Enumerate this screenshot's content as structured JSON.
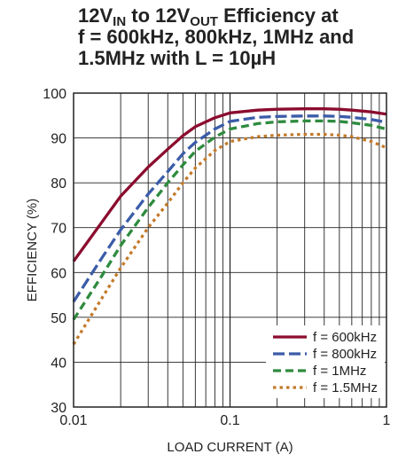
{
  "title": {
    "line1": {
      "p1": "12V",
      "s1": "IN",
      "p2": " to 12V",
      "s2": "OUT",
      "p3": " Efficiency at"
    },
    "line2": "f = 600kHz, 800kHz, 1MHz and",
    "line3": "1.5MHz with L = 10µH"
  },
  "chart_data": {
    "type": "line",
    "title": "12VIN to 12VOUT Efficiency at f = 600kHz, 800kHz, 1MHz and 1.5MHz with L = 10µH",
    "xlabel": "LOAD CURRENT (A)",
    "ylabel": "EFFICIENCY (%)",
    "xscale": "log",
    "xlim": [
      0.01,
      1
    ],
    "ylim": [
      30,
      100
    ],
    "grid": true,
    "legend_position": "bottom-right",
    "x_ticks": [
      {
        "v": 0.01,
        "label": "0.01"
      },
      {
        "v": 0.1,
        "label": "0.1"
      },
      {
        "v": 1,
        "label": "1"
      }
    ],
    "y_ticks": [
      30,
      40,
      50,
      60,
      70,
      80,
      90,
      100
    ],
    "series": [
      {
        "name": "f = 600kHz",
        "color": "#8b0c2e",
        "dash": "solid",
        "points": [
          [
            0.01,
            62.5
          ],
          [
            0.015,
            71
          ],
          [
            0.02,
            77
          ],
          [
            0.03,
            83.5
          ],
          [
            0.04,
            87.5
          ],
          [
            0.05,
            90.5
          ],
          [
            0.06,
            92.5
          ],
          [
            0.08,
            94.5
          ],
          [
            0.1,
            95.6
          ],
          [
            0.15,
            96.2
          ],
          [
            0.2,
            96.4
          ],
          [
            0.3,
            96.5
          ],
          [
            0.4,
            96.5
          ],
          [
            0.5,
            96.4
          ],
          [
            0.6,
            96.2
          ],
          [
            0.8,
            95.8
          ],
          [
            1.0,
            95.3
          ]
        ]
      },
      {
        "name": "f = 800kHz",
        "color": "#3b5ca8",
        "dash": "long",
        "points": [
          [
            0.01,
            53.5
          ],
          [
            0.015,
            63
          ],
          [
            0.02,
            69.5
          ],
          [
            0.03,
            77.5
          ],
          [
            0.04,
            82.5
          ],
          [
            0.05,
            86.5
          ],
          [
            0.06,
            89
          ],
          [
            0.08,
            92
          ],
          [
            0.1,
            93.7
          ],
          [
            0.15,
            94.6
          ],
          [
            0.2,
            94.8
          ],
          [
            0.3,
            94.9
          ],
          [
            0.4,
            94.9
          ],
          [
            0.5,
            94.8
          ],
          [
            0.6,
            94.6
          ],
          [
            0.8,
            94.1
          ],
          [
            1.0,
            93.5
          ]
        ]
      },
      {
        "name": "f = 1MHz",
        "color": "#2e8b3e",
        "dash": "medium",
        "points": [
          [
            0.01,
            49.5
          ],
          [
            0.015,
            59
          ],
          [
            0.02,
            66
          ],
          [
            0.03,
            74.5
          ],
          [
            0.04,
            80
          ],
          [
            0.05,
            84
          ],
          [
            0.06,
            87
          ],
          [
            0.08,
            90.2
          ],
          [
            0.1,
            92
          ],
          [
            0.15,
            93.2
          ],
          [
            0.2,
            93.6
          ],
          [
            0.3,
            93.8
          ],
          [
            0.4,
            93.8
          ],
          [
            0.5,
            93.7
          ],
          [
            0.6,
            93.4
          ],
          [
            0.8,
            92.8
          ],
          [
            1.0,
            92
          ]
        ]
      },
      {
        "name": "f = 1.5MHz",
        "color": "#c47a2a",
        "dash": "dot",
        "points": [
          [
            0.01,
            44
          ],
          [
            0.015,
            54
          ],
          [
            0.02,
            61
          ],
          [
            0.03,
            70
          ],
          [
            0.04,
            75.5
          ],
          [
            0.05,
            80
          ],
          [
            0.06,
            83.3
          ],
          [
            0.08,
            87.2
          ],
          [
            0.1,
            89.2
          ],
          [
            0.15,
            90.3
          ],
          [
            0.2,
            90.6
          ],
          [
            0.3,
            90.8
          ],
          [
            0.4,
            90.8
          ],
          [
            0.5,
            90.6
          ],
          [
            0.6,
            90.3
          ],
          [
            0.8,
            89.2
          ],
          [
            1.0,
            87.8
          ]
        ]
      }
    ]
  }
}
